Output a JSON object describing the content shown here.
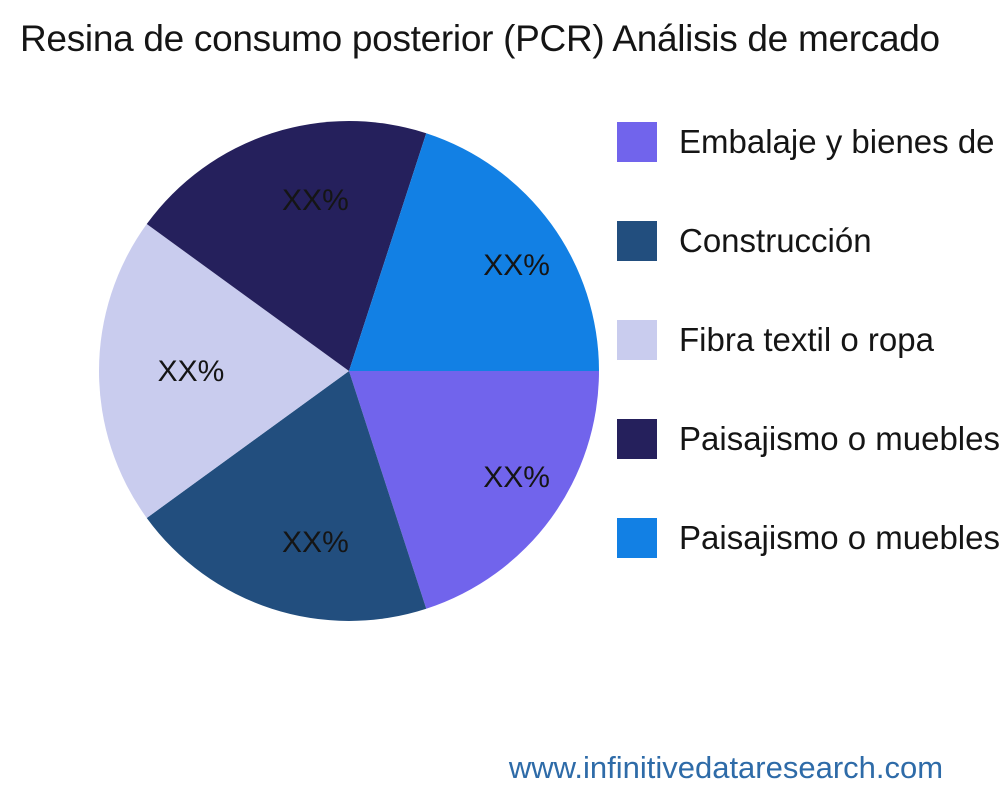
{
  "page": {
    "title": "Resina de consumo posterior (PCR) Análisis de mercado",
    "watermark": "www.infinitivedataresearch.com"
  },
  "colors": {
    "background": "#FFFFFF",
    "text": "#151515",
    "watermark": "#2E6BA8"
  },
  "chart_data": {
    "type": "pie",
    "title": "Resina de consumo posterior (PCR) Análisis de mercado",
    "legend_position": "right",
    "start_angle_deg": 0,
    "direction": "clockwise",
    "value_label_placeholder": "XX%",
    "segments": [
      {
        "label": "Embalaje y bienes de",
        "value": 20,
        "display": "XX%",
        "color": "#7164EC"
      },
      {
        "label": "Construcción",
        "value": 20,
        "display": "XX%",
        "color": "#224E7E"
      },
      {
        "label": "Fibra textil o ropa",
        "value": 20,
        "display": "XX%",
        "color": "#C9CCEE"
      },
      {
        "label": "Paisajismo o muebles",
        "value": 20,
        "display": "XX%",
        "color": "#25205C"
      },
      {
        "label": "Paisajismo o muebles",
        "value": 20,
        "display": "XX%",
        "color": "#1280E4"
      }
    ]
  }
}
